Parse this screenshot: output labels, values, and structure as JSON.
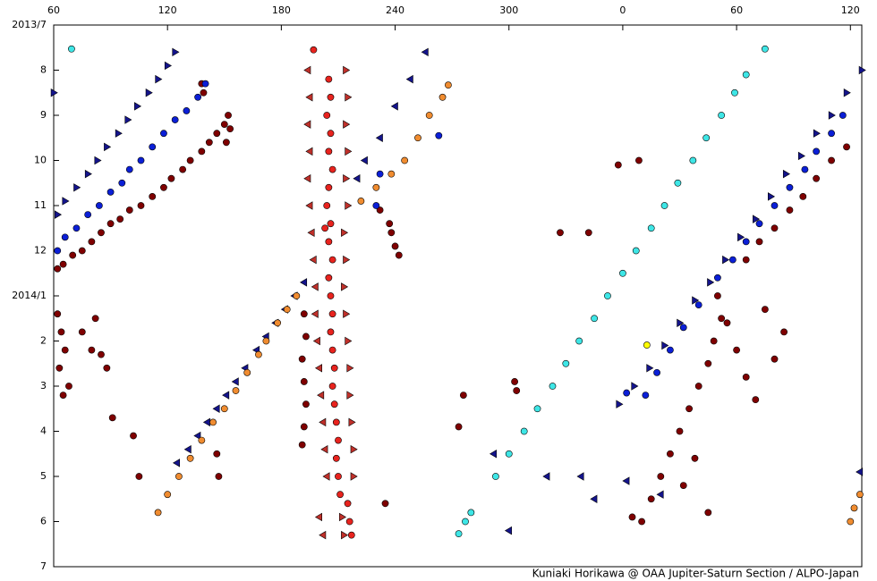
{
  "chart_data": {
    "type": "scatter",
    "credit": "Kuniaki Horikawa @ OAA Jupiter-Saturn Section / ALPO-Japan",
    "xlim": [
      60,
      486
    ],
    "xticks": [
      60,
      120,
      180,
      240,
      300,
      {
        "value": 360,
        "label": "0"
      },
      {
        "value": 420,
        "label": "60"
      },
      {
        "value": 480,
        "label": "120"
      }
    ],
    "ylim": [
      0,
      12
    ],
    "y_inverted": true,
    "yticks": [
      {
        "value": 0,
        "label": "2013/7"
      },
      {
        "value": 1,
        "label": "8"
      },
      {
        "value": 2,
        "label": "9"
      },
      {
        "value": 3,
        "label": "10"
      },
      {
        "value": 4,
        "label": "11"
      },
      {
        "value": 5,
        "label": "12"
      },
      {
        "value": 6,
        "label": "2014/1"
      },
      {
        "value": 7,
        "label": "2"
      },
      {
        "value": 8,
        "label": "3"
      },
      {
        "value": 9,
        "label": "4"
      },
      {
        "value": 10,
        "label": "5"
      },
      {
        "value": 11,
        "label": "6"
      },
      {
        "value": 12,
        "label": "7"
      }
    ],
    "series": [
      {
        "color": "#7f0000",
        "marker": "circle",
        "x": [
          150,
          146,
          142,
          138,
          132,
          128,
          122,
          118,
          112,
          106,
          100,
          95,
          90,
          85,
          80,
          75,
          70,
          65,
          62,
          138,
          139,
          152,
          153,
          151,
          62,
          64,
          66,
          63,
          68,
          65,
          75,
          80,
          85,
          82,
          88,
          192,
          193,
          191,
          192,
          193,
          192,
          191,
          238,
          240,
          242,
          237,
          232,
          146,
          147,
          91,
          102,
          105,
          478,
          470,
          462,
          455,
          448,
          440,
          432,
          425,
          410,
          412,
          408,
          405,
          400,
          395,
          390,
          385,
          380,
          375,
          370,
          415,
          420,
          425,
          430,
          435,
          440,
          445,
          392,
          398,
          405,
          365,
          357.6,
          368.5,
          327,
          342,
          303,
          304,
          276,
          273.5,
          234.8
        ],
        "values": [
          2.2,
          2.4,
          2.6,
          2.8,
          3.0,
          3.2,
          3.4,
          3.6,
          3.8,
          4.0,
          4.1,
          4.3,
          4.4,
          4.6,
          4.8,
          5.0,
          5.1,
          5.3,
          5.4,
          1.3,
          1.5,
          2.0,
          2.3,
          2.6,
          6.4,
          6.8,
          7.2,
          7.6,
          8.0,
          8.2,
          6.8,
          7.2,
          7.3,
          6.5,
          7.6,
          6.4,
          6.9,
          7.4,
          7.9,
          8.4,
          8.9,
          9.3,
          4.6,
          4.9,
          5.1,
          4.4,
          4.1,
          9.5,
          10.0,
          8.7,
          9.1,
          10.0,
          2.7,
          3.0,
          3.4,
          3.8,
          4.1,
          4.5,
          4.8,
          5.2,
          6.0,
          6.5,
          7.0,
          7.5,
          8.0,
          8.5,
          9.0,
          9.5,
          10.0,
          10.5,
          11.0,
          6.6,
          7.2,
          7.8,
          8.3,
          6.3,
          7.4,
          6.8,
          10.2,
          9.6,
          10.8,
          10.9,
          3.1,
          3.0,
          4.6,
          4.6,
          7.9,
          8.1,
          8.2,
          8.9,
          10.6
        ]
      },
      {
        "color": "#0b1fd6",
        "marker": "circle",
        "x": [
          140,
          136,
          130,
          124,
          118,
          112,
          106,
          100,
          96,
          90,
          84,
          78,
          72,
          66,
          62,
          232,
          230,
          263,
          476,
          470,
          462,
          456,
          448,
          440,
          432,
          425,
          418,
          410,
          400,
          392,
          385,
          378,
          372,
          362
        ],
        "values": [
          1.3,
          1.6,
          1.9,
          2.1,
          2.4,
          2.7,
          3.0,
          3.2,
          3.5,
          3.7,
          4.0,
          4.2,
          4.5,
          4.7,
          5.0,
          3.3,
          4.0,
          2.45,
          2.0,
          2.4,
          2.8,
          3.2,
          3.6,
          4.0,
          4.4,
          4.8,
          5.2,
          5.6,
          6.2,
          6.7,
          7.2,
          7.7,
          8.2,
          8.15
        ]
      },
      {
        "color": "#14148c",
        "marker": "triangle-right",
        "x": [
          124,
          120,
          115,
          110,
          104,
          99,
          94,
          88,
          83,
          78,
          72,
          66,
          62,
          60,
          486,
          478,
          470,
          462,
          454,
          446,
          438,
          430,
          422,
          414,
          406,
          398,
          390,
          382,
          374,
          366,
          358
        ],
        "values": [
          0.6,
          0.9,
          1.2,
          1.5,
          1.8,
          2.1,
          2.4,
          2.7,
          3.0,
          3.3,
          3.6,
          3.9,
          4.2,
          1.5,
          1.0,
          1.5,
          2.0,
          2.4,
          2.9,
          3.3,
          3.8,
          4.3,
          4.7,
          5.2,
          5.7,
          6.1,
          6.6,
          7.1,
          7.6,
          8.0,
          8.4
        ]
      },
      {
        "color": "#14148c",
        "marker": "triangle-left",
        "x": [
          192,
          187,
          182,
          177,
          172,
          167,
          161,
          156,
          151,
          146,
          141,
          136,
          131,
          125,
          256,
          248,
          240,
          232,
          224,
          220,
          320,
          338,
          345,
          362,
          380,
          292,
          300,
          485
        ],
        "values": [
          5.7,
          6.0,
          6.3,
          6.6,
          6.9,
          7.2,
          7.6,
          7.9,
          8.2,
          8.5,
          8.8,
          9.1,
          9.4,
          9.7,
          0.6,
          1.2,
          1.8,
          2.5,
          3.0,
          3.4,
          10.0,
          10.0,
          10.5,
          10.1,
          10.4,
          9.5,
          11.2,
          9.9
        ]
      },
      {
        "color": "#f08c30",
        "marker": "circle",
        "x": [
          268,
          265,
          258,
          252,
          245,
          238,
          230,
          222,
          188,
          183,
          178,
          172,
          168,
          162,
          156,
          150,
          144,
          138,
          132,
          126,
          120,
          115,
          485,
          482,
          480
        ],
        "values": [
          1.33,
          1.6,
          2.0,
          2.5,
          3.0,
          3.3,
          3.6,
          3.9,
          6.0,
          6.3,
          6.6,
          7.0,
          7.3,
          7.7,
          8.1,
          8.5,
          8.8,
          9.2,
          9.6,
          10.0,
          10.4,
          10.8,
          10.4,
          10.7,
          11.0
        ]
      },
      {
        "color": "#c0302a",
        "marker": "triangle-left",
        "x": [
          194,
          195,
          194,
          195,
          194,
          195,
          196,
          197,
          198,
          198,
          199,
          200,
          201,
          202,
          203,
          204,
          200,
          202
        ],
        "values": [
          1.0,
          1.6,
          2.2,
          2.8,
          3.4,
          4.0,
          4.6,
          5.2,
          5.8,
          6.4,
          7.0,
          7.6,
          8.2,
          8.8,
          9.4,
          10.0,
          10.9,
          11.3
        ]
      },
      {
        "color": "#c0302a",
        "marker": "triangle-right",
        "x": [
          214,
          215,
          214,
          215,
          214,
          215,
          213,
          214,
          213,
          214,
          215,
          216,
          216,
          217,
          218,
          218,
          212,
          213
        ],
        "values": [
          1.0,
          1.6,
          2.2,
          2.8,
          3.4,
          4.0,
          4.6,
          5.2,
          5.8,
          6.4,
          7.0,
          7.6,
          8.2,
          8.8,
          9.4,
          10.0,
          10.9,
          11.3
        ]
      },
      {
        "color": "#e8231e",
        "marker": "circle",
        "x": [
          205,
          206,
          204,
          206,
          205,
          207,
          205,
          204,
          206,
          205,
          207,
          205,
          206,
          207,
          206,
          207,
          208,
          207,
          208,
          209,
          210,
          209,
          210,
          211,
          215,
          216,
          217,
          197,
          203
        ],
        "values": [
          1.2,
          1.6,
          2.0,
          2.4,
          2.8,
          3.2,
          3.6,
          4.0,
          4.4,
          4.8,
          5.2,
          5.6,
          6.0,
          6.4,
          6.8,
          7.2,
          7.6,
          8.0,
          8.4,
          8.8,
          9.2,
          9.6,
          10.0,
          10.4,
          10.6,
          11.0,
          11.3,
          0.55,
          4.5
        ]
      },
      {
        "color": "#3ee6e6",
        "marker": "circle",
        "x": [
          425,
          419,
          412,
          404,
          397,
          389,
          382,
          375,
          367,
          360,
          352,
          345,
          337,
          330,
          323,
          315,
          308,
          300,
          293,
          69.4,
          435,
          273.5,
          277,
          280
        ],
        "values": [
          1.1,
          1.5,
          2.0,
          2.5,
          3.0,
          3.5,
          4.0,
          4.5,
          5.0,
          5.5,
          6.0,
          6.5,
          7.0,
          7.5,
          8.0,
          8.5,
          9.0,
          9.5,
          10.0,
          0.53,
          0.53,
          11.27,
          11.0,
          10.8
        ]
      },
      {
        "color": "#ffff00",
        "marker": "circle",
        "x": [
          372.7
        ],
        "values": [
          7.09
        ]
      }
    ]
  }
}
